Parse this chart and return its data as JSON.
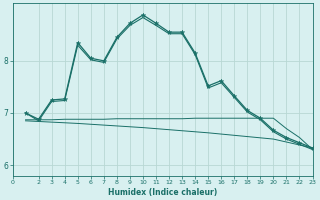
{
  "xlabel": "Humidex (Indice chaleur)",
  "bg_color": "#d8f0f0",
  "grid_color": "#b8d8d4",
  "line_color": "#1a7068",
  "xlim": [
    0,
    23
  ],
  "ylim": [
    5.8,
    9.1
  ],
  "yticks": [
    6,
    7,
    8
  ],
  "xticks": [
    0,
    2,
    3,
    4,
    5,
    6,
    7,
    8,
    9,
    10,
    11,
    12,
    13,
    14,
    15,
    16,
    17,
    18,
    19,
    20,
    21,
    22,
    23
  ],
  "series": [
    {
      "x": [
        1,
        2,
        3,
        4,
        5,
        6,
        7,
        8,
        9,
        10,
        11,
        12,
        13,
        14,
        15,
        16,
        17,
        18,
        19,
        20,
        21,
        22,
        23
      ],
      "y": [
        7.0,
        6.88,
        7.25,
        7.27,
        8.35,
        8.05,
        8.0,
        8.45,
        8.72,
        8.88,
        8.72,
        8.55,
        8.55,
        8.15,
        7.52,
        7.62,
        7.33,
        7.05,
        6.9,
        6.67,
        6.53,
        6.43,
        6.33
      ],
      "marker": true
    },
    {
      "x": [
        1,
        2,
        3,
        4,
        5,
        6,
        7,
        8,
        9,
        10,
        11,
        12,
        13,
        14,
        15,
        16,
        17,
        18,
        19,
        20,
        21,
        22,
        23
      ],
      "y": [
        7.0,
        6.85,
        7.22,
        7.24,
        8.3,
        8.02,
        7.97,
        8.42,
        8.68,
        8.83,
        8.68,
        8.52,
        8.52,
        8.12,
        7.48,
        7.58,
        7.3,
        7.02,
        6.87,
        6.64,
        6.5,
        6.4,
        6.3
      ],
      "marker": false
    },
    {
      "x": [
        1,
        2,
        3,
        4,
        5,
        6,
        7,
        8,
        9,
        10,
        11,
        12,
        13,
        14,
        15,
        16,
        17,
        18,
        19,
        20,
        21,
        22,
        23
      ],
      "y": [
        6.87,
        6.87,
        6.87,
        6.88,
        6.88,
        6.88,
        6.88,
        6.89,
        6.89,
        6.89,
        6.89,
        6.89,
        6.89,
        6.9,
        6.9,
        6.9,
        6.9,
        6.9,
        6.9,
        6.9,
        6.7,
        6.53,
        6.3
      ],
      "marker": false
    },
    {
      "x": [
        1,
        5,
        10,
        15,
        20,
        23
      ],
      "y": [
        6.85,
        6.8,
        6.72,
        6.62,
        6.5,
        6.33
      ],
      "marker": false
    }
  ]
}
